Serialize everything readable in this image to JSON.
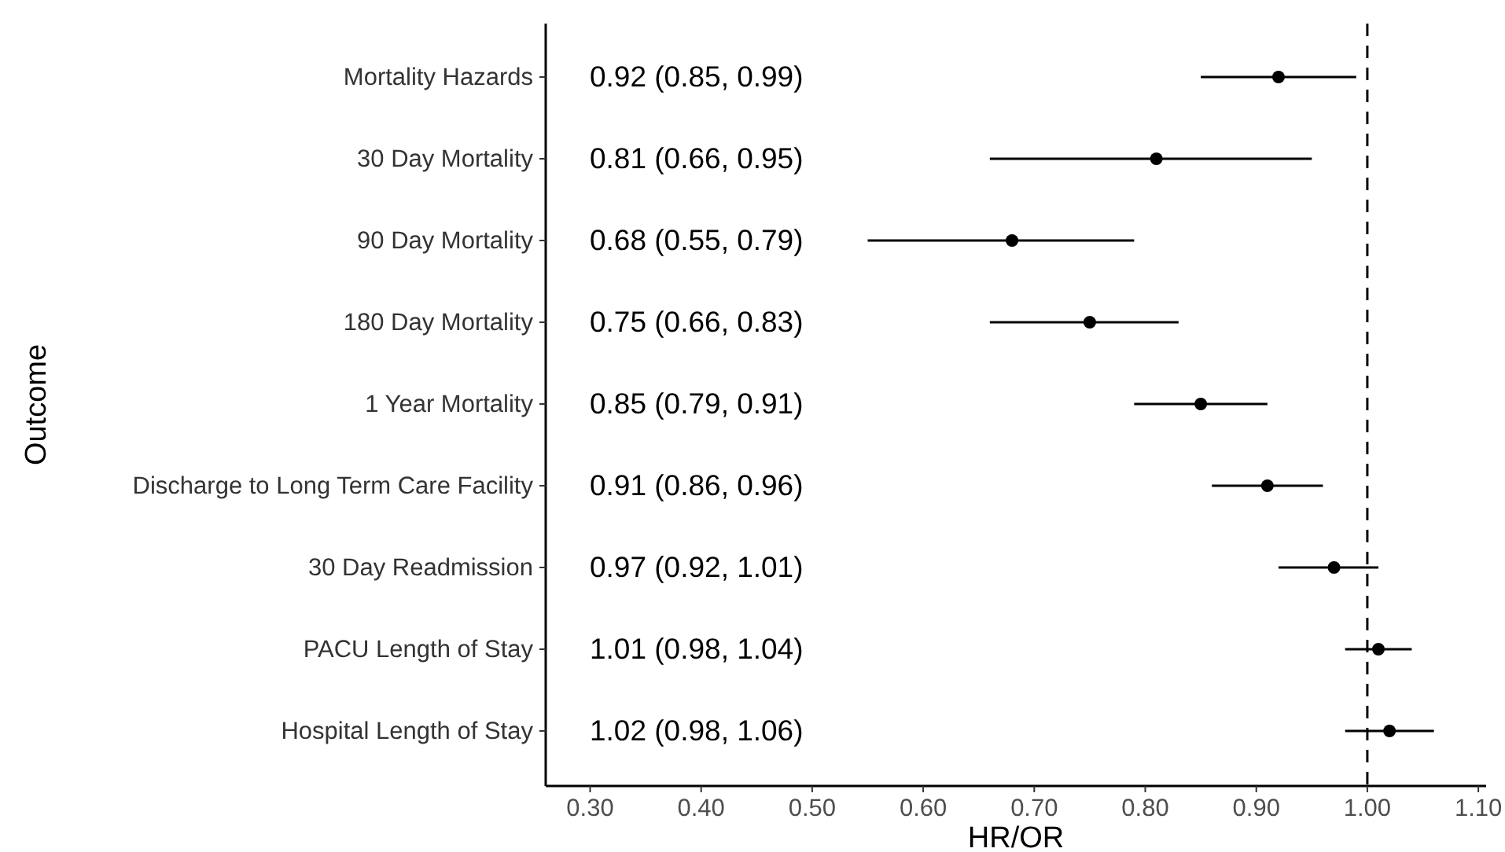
{
  "chart_data": {
    "type": "scatter",
    "orientation": "horizontal",
    "xlabel": "HR/OR",
    "ylabel": "Outcome",
    "categories": [
      "Mortality Hazards",
      "30 Day Mortality",
      "90 Day Mortality",
      "180 Day Mortality",
      "1 Year Mortality",
      "Discharge to Long Term Care Facility",
      "30 Day Readmission",
      "PACU Length of Stay",
      "Hospital Length of Stay"
    ],
    "values": [
      0.92,
      0.81,
      0.68,
      0.75,
      0.85,
      0.91,
      0.97,
      1.01,
      1.02
    ],
    "errors": [
      [
        0.85,
        0.99
      ],
      [
        0.66,
        0.95
      ],
      [
        0.55,
        0.79
      ],
      [
        0.66,
        0.83
      ],
      [
        0.79,
        0.91
      ],
      [
        0.86,
        0.96
      ],
      [
        0.92,
        1.01
      ],
      [
        0.98,
        1.04
      ],
      [
        0.98,
        1.06
      ]
    ],
    "annotations": [
      "0.92 (0.85, 0.99)",
      "0.81 (0.66, 0.95)",
      "0.68 (0.55, 0.79)",
      "0.75 (0.66, 0.83)",
      "0.85 (0.79, 0.91)",
      "0.91 (0.86, 0.96)",
      "0.97 (0.92, 1.01)",
      "1.01 (0.98, 1.04)",
      "1.02 (0.98, 1.06)"
    ],
    "color": "#000000",
    "marker": "circle",
    "xlim": [
      0.26,
      1.107
    ],
    "xticks": [
      {
        "value": 0.3,
        "label": "0.30"
      },
      {
        "value": 0.4,
        "label": "0.40"
      },
      {
        "value": 0.5,
        "label": "0.50"
      },
      {
        "value": 0.6,
        "label": "0.60"
      },
      {
        "value": 0.7,
        "label": "0.70"
      },
      {
        "value": 0.8,
        "label": "0.80"
      },
      {
        "value": 0.9,
        "label": "0.90"
      },
      {
        "value": 1.0,
        "label": "1.00"
      },
      {
        "value": 1.1,
        "label": "1.10"
      }
    ],
    "ref_lines": [
      {
        "axis": "x",
        "value": 1.0,
        "line_style": "dashed",
        "color": "#000000"
      }
    ],
    "grid": false
  }
}
